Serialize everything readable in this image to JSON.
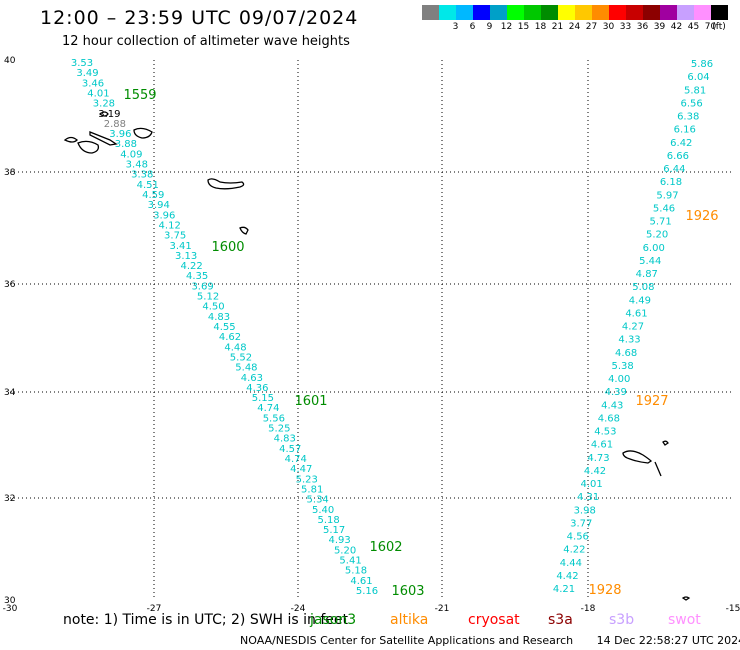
{
  "header": {
    "title": "12:00 – 23:59 UTC 09/07/2024",
    "subtitle": "12 hour collection of altimeter wave heights"
  },
  "colorbar": {
    "unit": "(ft)",
    "entries": [
      {
        "label": "",
        "color": "#808080"
      },
      {
        "label": "3",
        "color": "#00e8e8"
      },
      {
        "label": "6",
        "color": "#00b8ff"
      },
      {
        "label": "9",
        "color": "#0000ff"
      },
      {
        "label": "12",
        "color": "#00a0c8"
      },
      {
        "label": "15",
        "color": "#00ff00"
      },
      {
        "label": "18",
        "color": "#00c800"
      },
      {
        "label": "21",
        "color": "#008c00"
      },
      {
        "label": "24",
        "color": "#ffff00"
      },
      {
        "label": "27",
        "color": "#ffc800"
      },
      {
        "label": "30",
        "color": "#ff8c00"
      },
      {
        "label": "33",
        "color": "#ff0000"
      },
      {
        "label": "36",
        "color": "#c80000"
      },
      {
        "label": "39",
        "color": "#8c0000"
      },
      {
        "label": "42",
        "color": "#a000a0"
      },
      {
        "label": "45",
        "color": "#c8a0ff"
      },
      {
        "label": "70",
        "color": "#ff90ff"
      },
      {
        "label": "",
        "color": "#000000"
      }
    ]
  },
  "map": {
    "longitude_ticks": [
      "-30",
      "-27",
      "-24",
      "-21",
      "-18",
      "-15"
    ],
    "latitude_ticks": [
      "40",
      "38",
      "36",
      "34",
      "32",
      "30"
    ],
    "track1": {
      "color": "#00c8c8",
      "values": [
        "3.53",
        "3.49",
        "3.46",
        "4.01",
        "3.28",
        "3.19",
        "2.88",
        "3.96",
        "3.88",
        "4.09",
        "3.48",
        "3.38",
        "4.51",
        "4.59",
        "3.94",
        "3.96",
        "4.12",
        "3.75",
        "3.41",
        "3.13",
        "4.22",
        "4.35",
        "3.69",
        "5.12",
        "4.50",
        "4.83",
        "4.55",
        "4.62",
        "4.48",
        "5.52",
        "5.48",
        "4.63",
        "4.36",
        "5.15",
        "4.74",
        "5.56",
        "5.25",
        "4.83",
        "4.57",
        "4.74",
        "4.47",
        "5.23",
        "5.81",
        "5.34",
        "5.40",
        "5.18",
        "5.17",
        "4.93",
        "5.20",
        "5.41",
        "5.18",
        "4.61",
        "5.16"
      ],
      "value_colors": {
        "3.19": "#000000",
        "2.88": "#808080"
      }
    },
    "track2": {
      "color": "#00c8c8",
      "values": [
        "5.86",
        "6.04",
        "5.81",
        "6.56",
        "6.38",
        "6.16",
        "6.42",
        "6.66",
        "6.44",
        "6.18",
        "5.97",
        "5.46",
        "5.71",
        "5.20",
        "6.00",
        "5.44",
        "4.87",
        "5.08",
        "4.49",
        "4.61",
        "4.27",
        "4.33",
        "4.68",
        "5.38",
        "4.00",
        "4.39",
        "4.43",
        "4.68",
        "4.53",
        "4.61",
        "4.73",
        "4.42",
        "4.01",
        "4.31",
        "3.98",
        "3.77",
        "4.56",
        "4.22",
        "4.44",
        "4.42",
        "4.21"
      ]
    },
    "time_labels": [
      {
        "text": "1559",
        "color": "#008c00"
      },
      {
        "text": "1600",
        "color": "#008c00"
      },
      {
        "text": "1601",
        "color": "#008c00"
      },
      {
        "text": "1602",
        "color": "#008c00"
      },
      {
        "text": "1603",
        "color": "#008c00"
      },
      {
        "text": "1926",
        "color": "#ff8c00"
      },
      {
        "text": "1927",
        "color": "#ff8c00"
      },
      {
        "text": "1928",
        "color": "#ff8c00"
      }
    ]
  },
  "note": "note:  1) Time is in UTC;  2) SWH is in feet",
  "missions": [
    {
      "name": "jason3",
      "color": "#008c00"
    },
    {
      "name": "altika",
      "color": "#ff8c00"
    },
    {
      "name": "cryosat",
      "color": "#ff0000"
    },
    {
      "name": "s3a",
      "color": "#8c0000"
    },
    {
      "name": "s3b",
      "color": "#c8a0ff"
    },
    {
      "name": "swot",
      "color": "#ff90ff"
    }
  ],
  "footer": {
    "credit": "NOAA/NESDIS Center for Satellite Applications and Research",
    "timestamp": "14 Dec 22:58:27 UTC 2024"
  }
}
